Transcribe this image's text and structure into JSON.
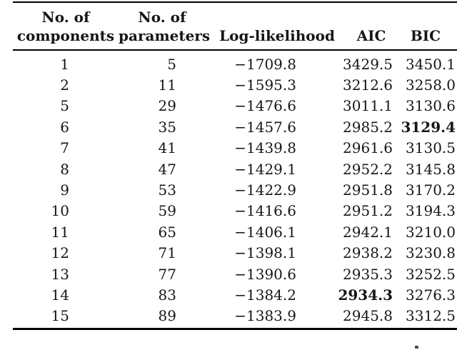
{
  "table": {
    "headers": [
      {
        "key": "components",
        "line1": "No. of",
        "line2": "components"
      },
      {
        "key": "parameters",
        "line1": "No. of",
        "line2": "parameters"
      },
      {
        "key": "log_likelihood",
        "line1": "",
        "line2": "Log-likelihood"
      },
      {
        "key": "aic",
        "line1": "",
        "line2": "AIC"
      },
      {
        "key": "bic",
        "line1": "",
        "line2": "BIC"
      }
    ],
    "rows": [
      {
        "values": [
          "1",
          "5",
          "−1709.8",
          "3429.5",
          "3450.1"
        ],
        "bold_col": null
      },
      {
        "values": [
          "2",
          "11",
          "−1595.3",
          "3212.6",
          "3258.0"
        ],
        "bold_col": null
      },
      {
        "values": [
          "5",
          "29",
          "−1476.6",
          "3011.1",
          "3130.6"
        ],
        "bold_col": null
      },
      {
        "values": [
          "6",
          "35",
          "−1457.6",
          "2985.2",
          "3129.4"
        ],
        "bold_col": 4
      },
      {
        "values": [
          "7",
          "41",
          "−1439.8",
          "2961.6",
          "3130.5"
        ],
        "bold_col": null
      },
      {
        "values": [
          "8",
          "47",
          "−1429.1",
          "2952.2",
          "3145.8"
        ],
        "bold_col": null
      },
      {
        "values": [
          "9",
          "53",
          "−1422.9",
          "2951.8",
          "3170.2"
        ],
        "bold_col": null
      },
      {
        "values": [
          "10",
          "59",
          "−1416.6",
          "2951.2",
          "3194.3"
        ],
        "bold_col": null
      },
      {
        "values": [
          "11",
          "65",
          "−1406.1",
          "2942.1",
          "3210.0"
        ],
        "bold_col": null
      },
      {
        "values": [
          "12",
          "71",
          "−1398.1",
          "2938.2",
          "3230.8"
        ],
        "bold_col": null
      },
      {
        "values": [
          "13",
          "77",
          "−1390.6",
          "2935.3",
          "3252.5"
        ],
        "bold_col": null
      },
      {
        "values": [
          "14",
          "83",
          "−1384.2",
          "2934.3",
          "3276.3"
        ],
        "bold_col": 3
      },
      {
        "values": [
          "15",
          "89",
          "−1383.9",
          "2945.8",
          "3312.5"
        ],
        "bold_col": null
      }
    ]
  },
  "colors": {
    "text": "#161616",
    "rule": "#000000",
    "background": "#ffffff",
    "bold_text": "#000000"
  }
}
